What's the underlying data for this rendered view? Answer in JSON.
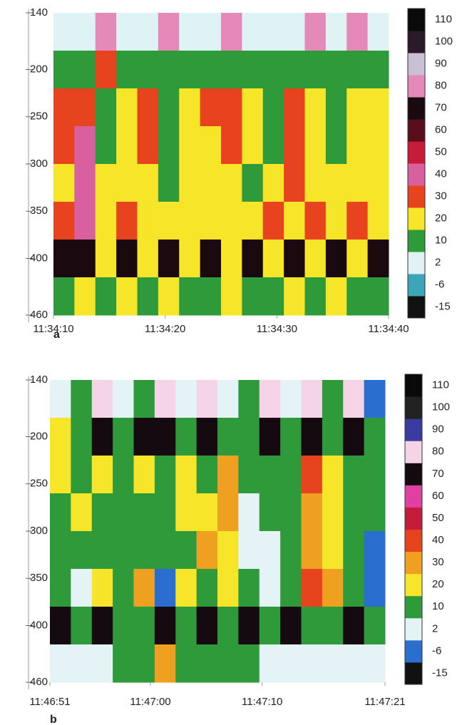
{
  "chart_data": [
    {
      "type": "heatmap",
      "panel_label": "a",
      "xticks": [
        "11:34:10",
        "11:34:20",
        "11:34:30",
        "11:34:40"
      ],
      "ylim": [
        140,
        460
      ],
      "yticks": [
        140,
        200,
        250,
        300,
        350,
        400,
        460
      ],
      "z": [
        [
          2,
          2,
          80,
          2,
          2,
          80,
          2,
          2,
          80,
          2,
          2,
          2,
          80,
          2,
          80,
          2
        ],
        [
          10,
          10,
          30,
          10,
          10,
          10,
          10,
          10,
          10,
          10,
          10,
          10,
          10,
          10,
          10,
          10
        ],
        [
          30,
          30,
          10,
          20,
          30,
          10,
          20,
          30,
          30,
          20,
          10,
          30,
          20,
          10,
          20,
          20
        ],
        [
          30,
          40,
          10,
          20,
          30,
          10,
          20,
          20,
          30,
          20,
          10,
          30,
          20,
          10,
          20,
          20
        ],
        [
          20,
          40,
          20,
          20,
          20,
          10,
          20,
          20,
          20,
          10,
          20,
          30,
          20,
          20,
          20,
          20
        ],
        [
          30,
          40,
          20,
          30,
          20,
          20,
          20,
          20,
          20,
          20,
          30,
          20,
          30,
          20,
          30,
          20
        ],
        [
          70,
          70,
          20,
          70,
          20,
          70,
          20,
          70,
          20,
          70,
          20,
          70,
          20,
          70,
          20,
          70
        ],
        [
          10,
          20,
          10,
          20,
          10,
          20,
          10,
          10,
          20,
          10,
          10,
          20,
          10,
          20,
          10,
          10
        ]
      ],
      "colorbar": {
        "ticks": [
          -15,
          -6,
          2,
          10,
          20,
          30,
          40,
          50,
          60,
          70,
          80,
          90,
          100,
          110
        ],
        "colors": [
          "#111111",
          "#3aa6b8",
          "#dff3f5",
          "#2e9a3a",
          "#f7e52a",
          "#e8431f",
          "#d9609e",
          "#c51c3c",
          "#5a0d1c",
          "#1a0a10",
          "#e58ab8",
          "#c9c0d6",
          "#2a1a2a",
          "#0a0a0a"
        ]
      }
    },
    {
      "type": "heatmap",
      "panel_label": "b",
      "xticks": [
        "11:46:51",
        "11:47:00",
        "11:47:10",
        "11:47:21"
      ],
      "ylim": [
        140,
        460
      ],
      "yticks": [
        140,
        200,
        250,
        300,
        350,
        400,
        460
      ],
      "z": [
        [
          2,
          10,
          80,
          2,
          10,
          80,
          2,
          80,
          2,
          10,
          80,
          2,
          80,
          10,
          80,
          -6
        ],
        [
          20,
          10,
          70,
          10,
          70,
          70,
          10,
          70,
          10,
          10,
          70,
          10,
          70,
          10,
          70,
          10
        ],
        [
          20,
          10,
          20,
          10,
          20,
          10,
          20,
          10,
          30,
          10,
          10,
          10,
          40,
          20,
          10,
          10
        ],
        [
          10,
          20,
          10,
          10,
          10,
          10,
          20,
          20,
          30,
          2,
          10,
          10,
          30,
          20,
          10,
          10
        ],
        [
          10,
          10,
          10,
          10,
          10,
          10,
          10,
          30,
          20,
          2,
          2,
          10,
          30,
          20,
          10,
          -6
        ],
        [
          10,
          2,
          20,
          10,
          30,
          -6,
          20,
          10,
          20,
          10,
          2,
          10,
          40,
          30,
          10,
          -6
        ],
        [
          70,
          10,
          70,
          10,
          10,
          70,
          10,
          70,
          10,
          70,
          10,
          70,
          10,
          10,
          70,
          10
        ],
        [
          2,
          2,
          2,
          10,
          10,
          30,
          10,
          10,
          10,
          10,
          2,
          2,
          2,
          2,
          2,
          2
        ]
      ],
      "colorbar": {
        "ticks": [
          -15,
          -6,
          2,
          10,
          20,
          30,
          40,
          50,
          60,
          70,
          80,
          90,
          100,
          110
        ],
        "colors": [
          "#111111",
          "#2a6fd0",
          "#e4f3f6",
          "#2e9a3a",
          "#f7e52a",
          "#f0a020",
          "#e8431f",
          "#c51c3c",
          "#e040a0",
          "#150a10",
          "#f4d4e6",
          "#3a3aa0",
          "#222222",
          "#0a0a0a"
        ]
      }
    }
  ]
}
